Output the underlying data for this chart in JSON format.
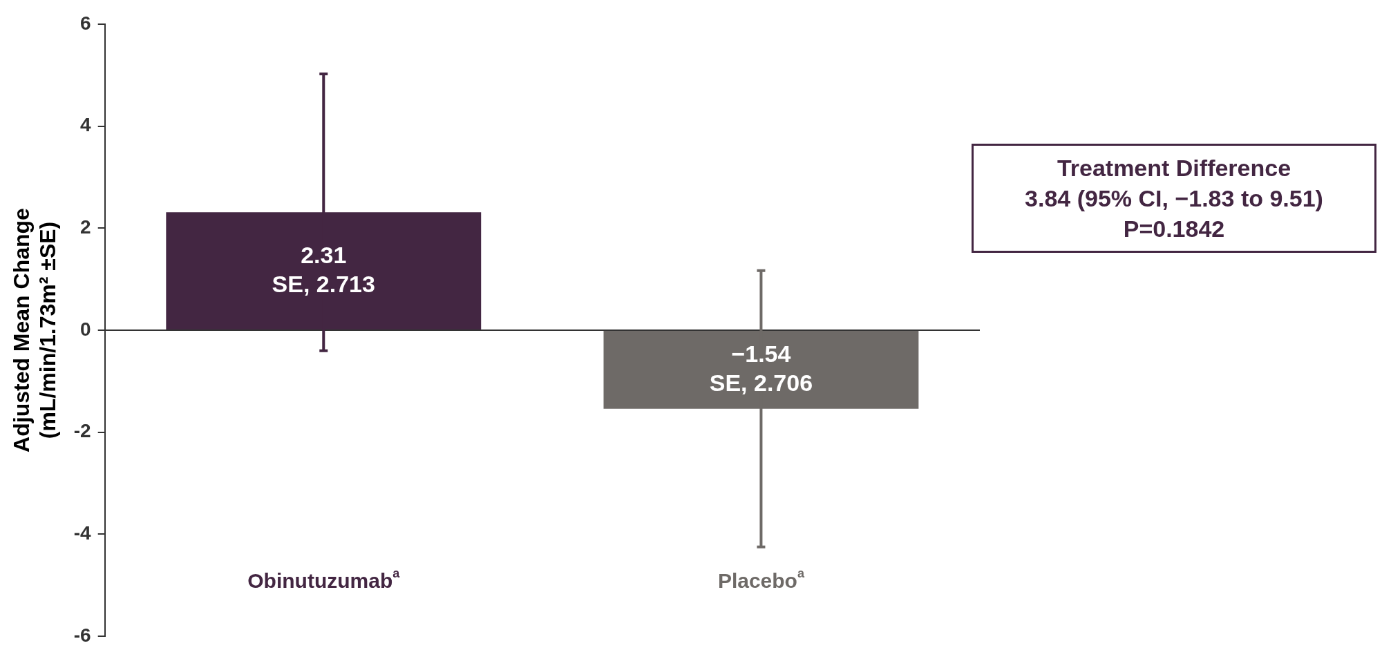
{
  "chart_data": {
    "type": "bar",
    "categories": [
      "Obinutuzumab$^{a}$",
      "Placebo$^{a}$"
    ],
    "values": [
      2.31,
      -1.54
    ],
    "colors": [
      "#432642",
      "#6e6a67"
    ],
    "errors": [
      2.713,
      2.706
    ],
    "value_labels": [
      "2.31\nSE, 2.713",
      "−1.54\nSE, 2.706"
    ],
    "ylabel": "Adjusted Mean Change\n(mL/min/1.73m² ±SE)",
    "ylim": [
      -6,
      6
    ],
    "yticks": [
      -6,
      -4,
      -2,
      0,
      2,
      4,
      6
    ],
    "legend": false,
    "annotations": [
      "Treatment Difference\n3.84 (95% CI, −1.83 to 9.51)\nP=0.1842"
    ]
  }
}
